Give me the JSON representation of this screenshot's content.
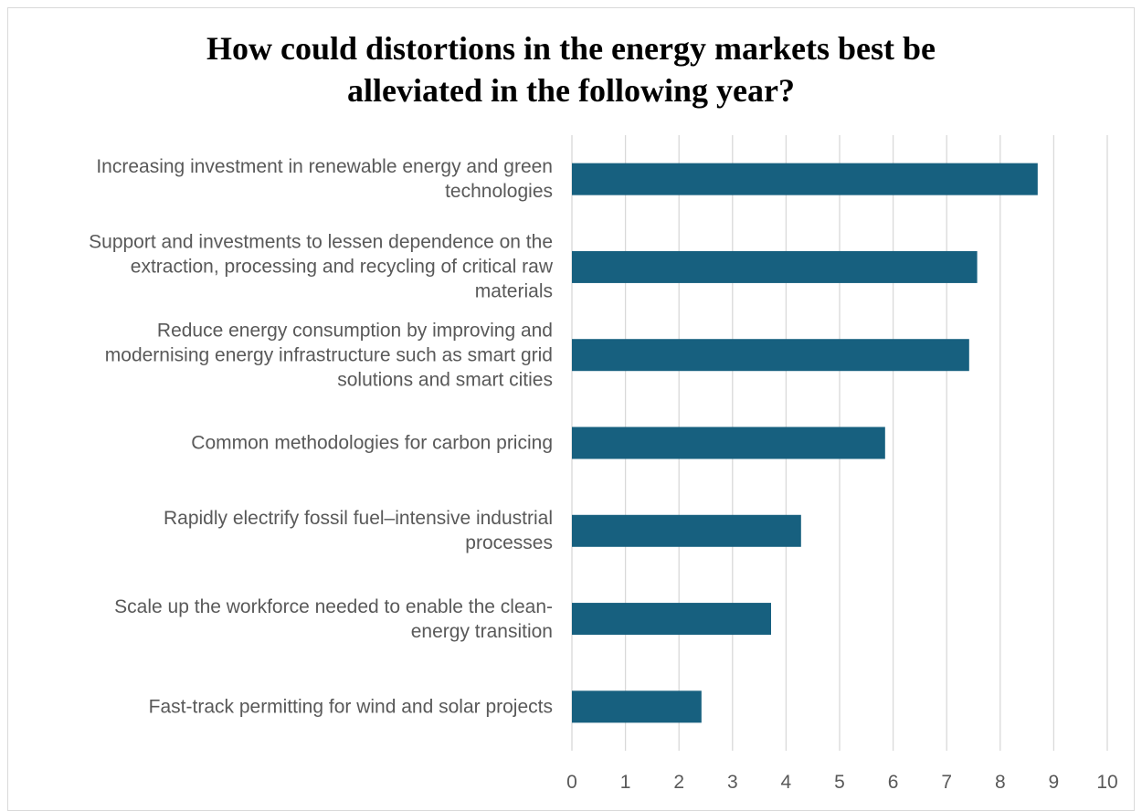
{
  "chart_data": {
    "type": "bar",
    "orientation": "horizontal",
    "title": "How could distortions in the energy markets best be alleviated in the following year?",
    "title_lines": [
      "How could distortions in the energy markets best be",
      "alleviated in the following year?"
    ],
    "categories": [
      "Increasing investment in renewable energy and green technologies",
      "Support and investments to lessen dependence on the extraction, processing and recycling of critical raw materials",
      "Reduce energy consumption by improving and modernising energy infrastructure such as smart grid solutions and smart cities",
      "Common methodologies for carbon pricing",
      "Rapidly electrify fossil fuel–intensive industrial processes",
      "Scale up the workforce needed to enable the clean-energy transition",
      "Fast-track permitting for wind and solar projects"
    ],
    "category_label_lines": [
      [
        "Increasing investment in renewable energy and green",
        "technologies"
      ],
      [
        "Support and investments to lessen dependence on the",
        "extraction, processing and recycling of critical raw",
        "materials"
      ],
      [
        "Reduce energy consumption by improving and",
        "modernising energy infrastructure such as smart grid",
        "solutions and smart cities"
      ],
      [
        "Common methodologies for carbon pricing"
      ],
      [
        "Rapidly electrify fossil fuel–intensive industrial",
        "processes"
      ],
      [
        "Scale up the workforce needed to enable the clean-",
        "energy transition"
      ],
      [
        "Fast-track permitting for wind and solar projects"
      ]
    ],
    "values": [
      8.7,
      7.57,
      7.42,
      5.85,
      4.28,
      3.72,
      2.42
    ],
    "xlim": [
      0,
      10
    ],
    "x_ticks": [
      "0",
      "1",
      "2",
      "3",
      "4",
      "5",
      "6",
      "7",
      "8",
      "9",
      "10"
    ],
    "xlabel": "",
    "ylabel": "",
    "grid": "vertical",
    "legend": "none",
    "bar_color": "#17607f"
  }
}
